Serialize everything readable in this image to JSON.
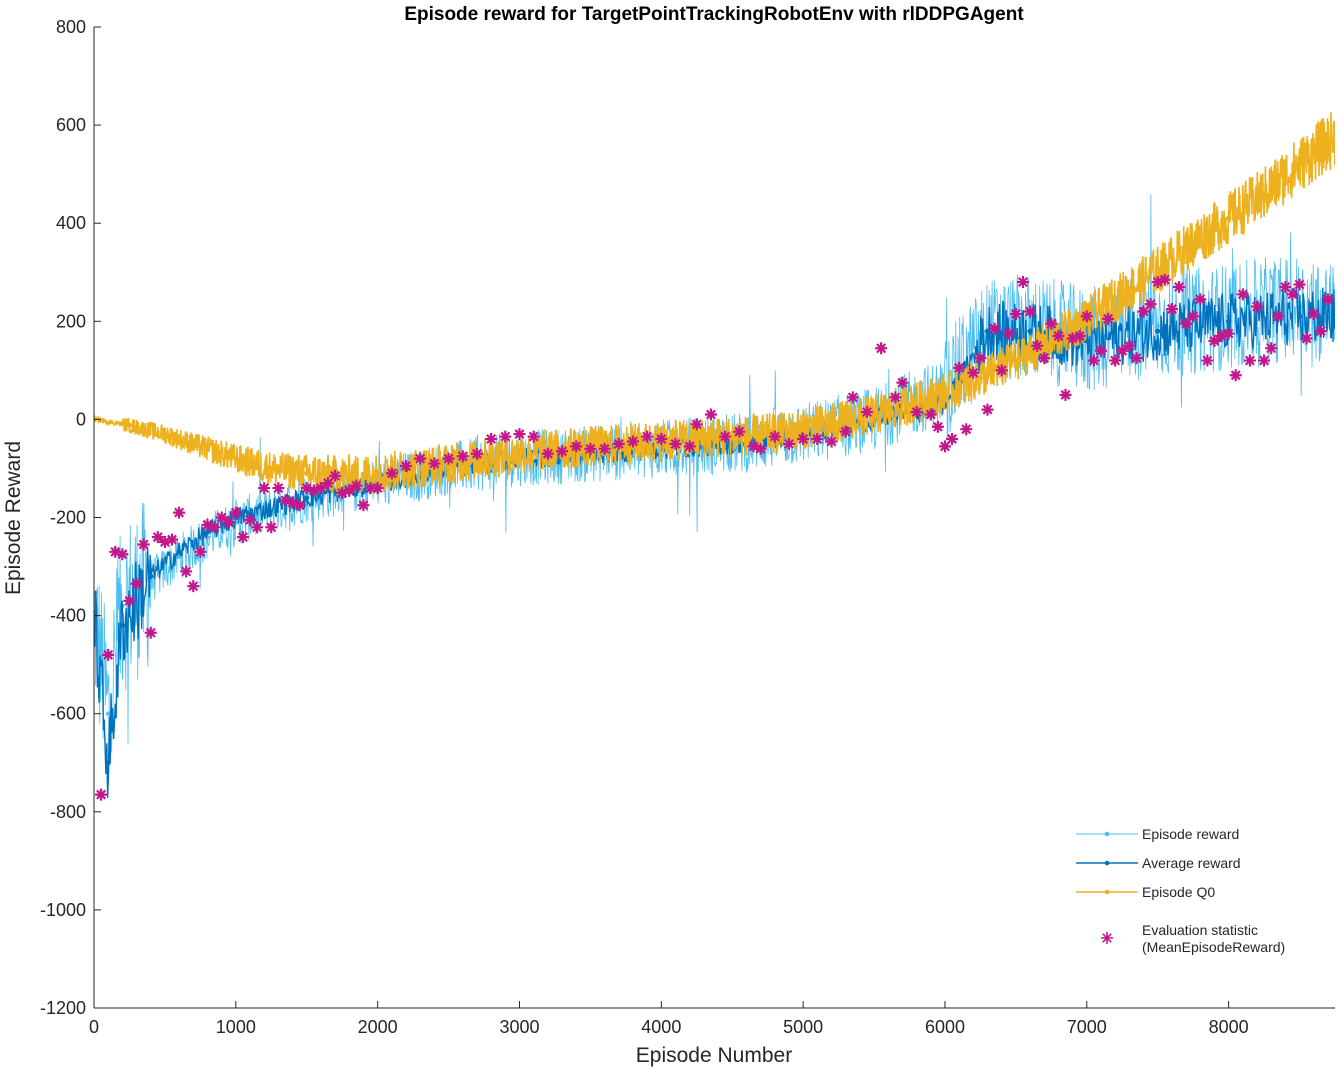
{
  "chart_data": {
    "type": "line",
    "title": "Episode reward for TargetPointTrackingRobotEnv with rlDDPGAgent",
    "xlabel": "Episode Number",
    "ylabel": "Episode Reward",
    "xlim": [
      0,
      8750
    ],
    "ylim": [
      -1200,
      800
    ],
    "xticks": [
      "0",
      "1000",
      "2000",
      "3000",
      "4000",
      "5000",
      "6000",
      "7000",
      "8000"
    ],
    "yticks": [
      "800",
      "600",
      "400",
      "200",
      "0",
      "-200",
      "-400",
      "-600",
      "-800",
      "-1000",
      "-1200"
    ],
    "grid": false,
    "legend_position": "bottom-right",
    "colors": {
      "episode_reward": "#4DBEEE",
      "average_reward": "#0072BD",
      "episode_q0": "#EDB120",
      "evaluation": "#C2188C"
    },
    "series": [
      {
        "name": "Episode reward",
        "x": [
          0,
          100,
          200,
          400,
          600,
          800,
          1000,
          1500,
          2000,
          2500,
          3000,
          3500,
          4000,
          4500,
          5000,
          5500,
          6000,
          6300,
          6600,
          7000,
          7500,
          8000,
          8500,
          8750
        ],
        "y": [
          -400,
          -600,
          -380,
          -330,
          -280,
          -240,
          -210,
          -160,
          -130,
          -100,
          -80,
          -70,
          -60,
          -50,
          -30,
          0,
          60,
          180,
          190,
          160,
          190,
          210,
          230,
          220
        ]
      },
      {
        "name": "Average reward",
        "x": [
          0,
          100,
          200,
          400,
          600,
          800,
          1000,
          1500,
          2000,
          2500,
          3000,
          3500,
          4000,
          4500,
          5000,
          5500,
          6000,
          6300,
          6600,
          7000,
          7500,
          8000,
          8500,
          8750
        ],
        "y": [
          -400,
          -700,
          -420,
          -320,
          -270,
          -230,
          -200,
          -160,
          -130,
          -100,
          -80,
          -70,
          -60,
          -50,
          -30,
          0,
          30,
          180,
          180,
          160,
          180,
          200,
          210,
          210
        ]
      },
      {
        "name": "Episode Q0",
        "x": [
          0,
          250,
          500,
          750,
          1000,
          1250,
          1500,
          1750,
          2000,
          2250,
          2500,
          2750,
          3000,
          3250,
          3500,
          3750,
          4000,
          4250,
          4500,
          4750,
          5000,
          5250,
          5500,
          5750,
          6000,
          6250,
          6500,
          6750,
          7000,
          7250,
          7500,
          7750,
          8000,
          8250,
          8500,
          8750
        ],
        "y": [
          0,
          -12,
          -30,
          -55,
          -80,
          -100,
          -110,
          -115,
          -110,
          -100,
          -90,
          -80,
          -70,
          -62,
          -55,
          -50,
          -45,
          -40,
          -35,
          -30,
          -20,
          -5,
          10,
          30,
          55,
          85,
          120,
          160,
          205,
          255,
          305,
          360,
          410,
          460,
          520,
          575
        ]
      },
      {
        "name": "Evaluation statistic (MeanEpisodeReward)",
        "x": [
          50,
          100,
          150,
          200,
          250,
          300,
          350,
          400,
          450,
          500,
          550,
          600,
          650,
          700,
          750,
          800,
          850,
          900,
          950,
          1000,
          1050,
          1100,
          1150,
          1200,
          1250,
          1300,
          1350,
          1400,
          1450,
          1500,
          1550,
          1600,
          1650,
          1700,
          1750,
          1800,
          1850,
          1900,
          1950,
          2000,
          2100,
          2200,
          2300,
          2400,
          2500,
          2600,
          2700,
          2800,
          2900,
          3000,
          3100,
          3200,
          3300,
          3400,
          3500,
          3600,
          3700,
          3800,
          3900,
          4000,
          4100,
          4200,
          4250,
          4350,
          4450,
          4550,
          4650,
          4700,
          4800,
          4900,
          5000,
          5100,
          5200,
          5300,
          5350,
          5450,
          5550,
          5650,
          5700,
          5800,
          5900,
          5950,
          6000,
          6050,
          6100,
          6150,
          6200,
          6250,
          6300,
          6350,
          6400,
          6450,
          6500,
          6550,
          6600,
          6650,
          6700,
          6750,
          6800,
          6850,
          6900,
          6950,
          7000,
          7050,
          7100,
          7150,
          7200,
          7250,
          7300,
          7350,
          7400,
          7450,
          7500,
          7550,
          7600,
          7650,
          7700,
          7750,
          7800,
          7850,
          7900,
          7950,
          8000,
          8050,
          8100,
          8150,
          8200,
          8250,
          8300,
          8350,
          8400,
          8450,
          8500,
          8550,
          8600,
          8650,
          8700
        ],
        "y": [
          -765,
          -480,
          -270,
          -275,
          -370,
          -335,
          -255,
          -435,
          -240,
          -250,
          -245,
          -190,
          -310,
          -340,
          -270,
          -215,
          -220,
          -200,
          -210,
          -190,
          -240,
          -205,
          -220,
          -140,
          -220,
          -140,
          -165,
          -170,
          -175,
          -140,
          -145,
          -140,
          -130,
          -115,
          -150,
          -145,
          -135,
          -175,
          -140,
          -140,
          -110,
          -95,
          -80,
          -90,
          -80,
          -75,
          -70,
          -40,
          -35,
          -30,
          -35,
          -70,
          -65,
          -55,
          -60,
          -60,
          -50,
          -45,
          -35,
          -40,
          -50,
          -55,
          -10,
          10,
          -35,
          -25,
          -55,
          -60,
          -35,
          -50,
          -40,
          -40,
          -45,
          -25,
          45,
          15,
          145,
          45,
          75,
          15,
          10,
          -15,
          -55,
          -40,
          105,
          -20,
          95,
          125,
          20,
          185,
          100,
          175,
          215,
          280,
          220,
          150,
          125,
          195,
          170,
          50,
          165,
          170,
          210,
          120,
          140,
          205,
          120,
          140,
          150,
          125,
          220,
          235,
          280,
          285,
          225,
          270,
          195,
          210,
          245,
          120,
          160,
          170,
          175,
          90,
          255,
          120,
          230,
          120,
          145,
          210,
          270,
          255,
          275,
          165,
          215,
          180,
          245
        ]
      }
    ]
  }
}
